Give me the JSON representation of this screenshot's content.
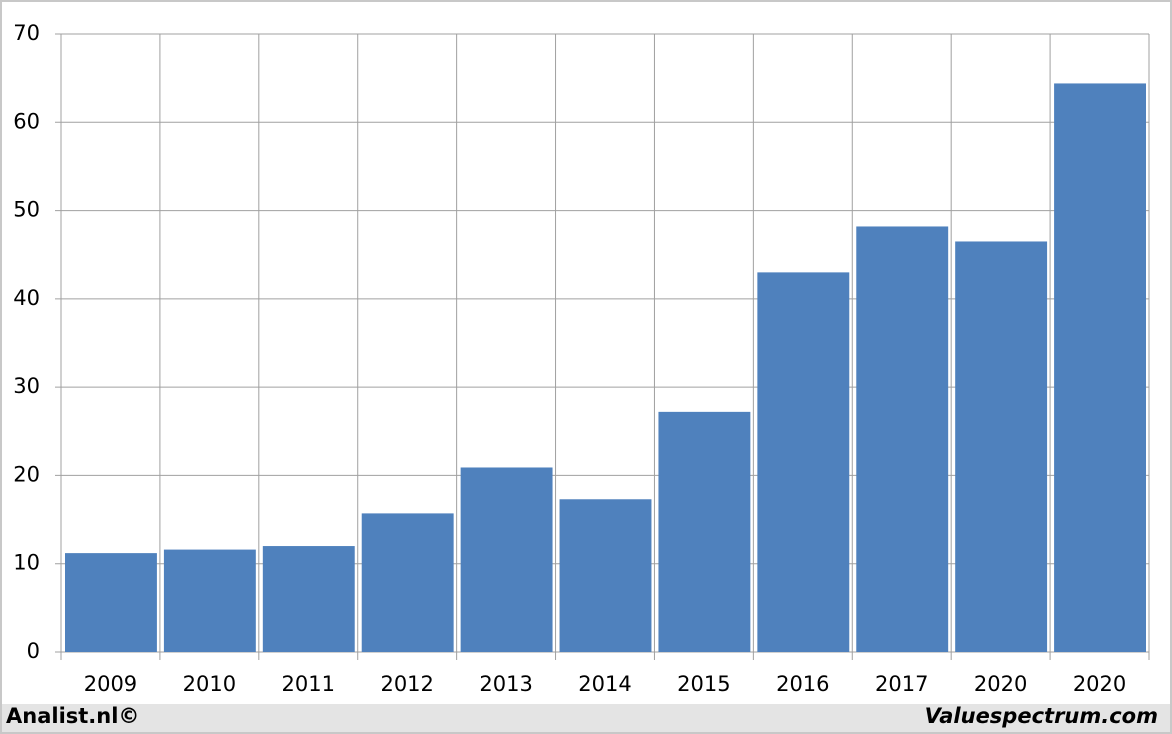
{
  "chart_data": {
    "type": "bar",
    "categories": [
      "2009",
      "2010",
      "2011",
      "2012",
      "2013",
      "2014",
      "2015",
      "2016",
      "2017",
      "2020",
      "2020"
    ],
    "values": [
      11.2,
      11.6,
      12.0,
      15.7,
      20.9,
      17.3,
      27.2,
      43.0,
      48.2,
      46.5,
      64.4
    ],
    "color": "#4f81bd",
    "ylim": [
      0,
      70
    ],
    "yticks": [
      0,
      10,
      20,
      30,
      40,
      50,
      60,
      70
    ],
    "grid": true
  },
  "footer": {
    "left": "Analist.nl©",
    "right": "Valuespectrum.com"
  }
}
